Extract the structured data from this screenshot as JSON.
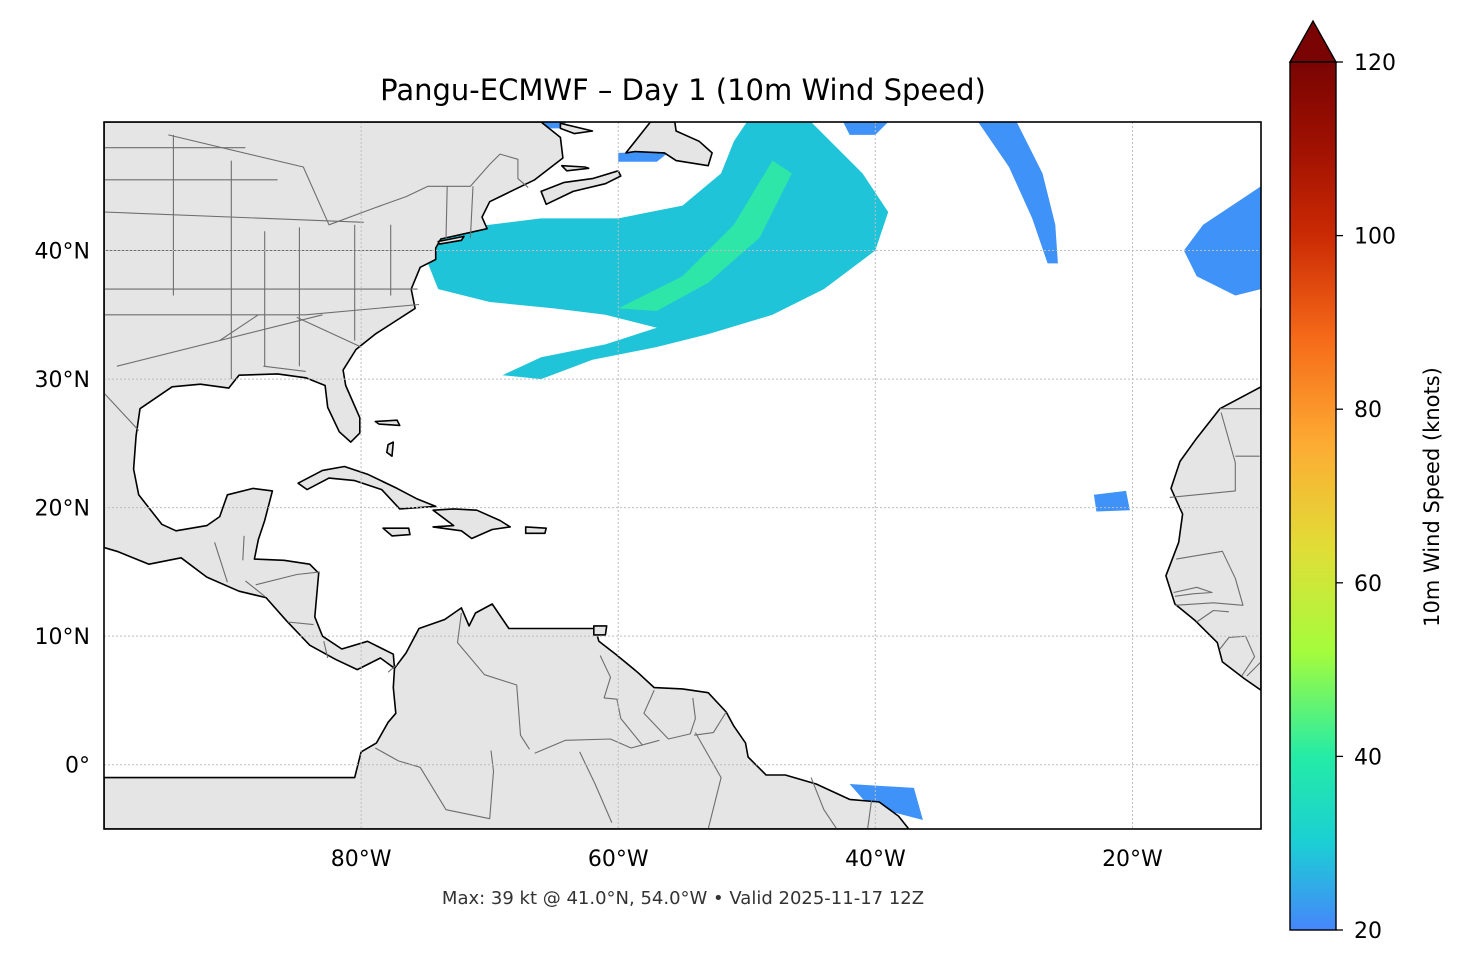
{
  "title": "Pangu-ECMWF – Day 1 (10m Wind Speed)",
  "footer": "Max: 39 kt @ 41.0°N, 54.0°W • Valid 2025-11-17 12Z",
  "map": {
    "extent": {
      "lon_min": -100,
      "lon_max": -10,
      "lat_min": -5,
      "lat_max": 50
    },
    "lon_ticks": [
      {
        "value": -80,
        "label": "80°W"
      },
      {
        "value": -60,
        "label": "60°W"
      },
      {
        "value": -40,
        "label": "40°W"
      },
      {
        "value": -20,
        "label": "20°W"
      }
    ],
    "lat_ticks": [
      {
        "value": 40,
        "label": "40°N"
      },
      {
        "value": 30,
        "label": "30°N"
      },
      {
        "value": 20,
        "label": "20°N"
      },
      {
        "value": 10,
        "label": "10°N"
      },
      {
        "value": 0,
        "label": "0°"
      }
    ],
    "colors": {
      "land": "#e5e5e5",
      "coast": "#000000",
      "borders": "#6e6e6e",
      "grid": "#bdbdbd"
    },
    "max_wind": {
      "value_kt": 39,
      "lat": 41.0,
      "lon": -54.0
    },
    "wind_regions": [
      {
        "name": "us-east-coast-jet",
        "color": "#20c4d8",
        "polygon": [
          [
            -74,
            41.5
          ],
          [
            -70,
            42
          ],
          [
            -66,
            42.5
          ],
          [
            -60,
            42.5
          ],
          [
            -55,
            43.5
          ],
          [
            -52,
            46
          ],
          [
            -51,
            48.5
          ],
          [
            -50,
            50
          ],
          [
            -45,
            50
          ],
          [
            -41,
            46
          ],
          [
            -39,
            43
          ],
          [
            -40,
            40
          ],
          [
            -44,
            37
          ],
          [
            -48,
            35
          ],
          [
            -53,
            33.5
          ],
          [
            -57,
            32.5
          ],
          [
            -62,
            31.5
          ],
          [
            -66,
            30
          ],
          [
            -69,
            30.3
          ],
          [
            -66,
            31.7
          ],
          [
            -61,
            32.7
          ],
          [
            -57,
            34
          ],
          [
            -61,
            35
          ],
          [
            -65,
            35.5
          ],
          [
            -70,
            36
          ],
          [
            -74,
            37
          ],
          [
            -75,
            39.5
          ]
        ]
      },
      {
        "name": "jet-core",
        "color": "#2ee6a8",
        "polygon": [
          [
            -60,
            35.5
          ],
          [
            -55,
            38
          ],
          [
            -51,
            42
          ],
          [
            -48,
            47
          ],
          [
            -46.5,
            46
          ],
          [
            -49,
            41
          ],
          [
            -53,
            37.5
          ],
          [
            -57,
            35.3
          ]
        ]
      },
      {
        "name": "canada-maritimes-patch",
        "color": "#3f92f8",
        "polygon": [
          [
            -60,
            47.6
          ],
          [
            -56,
            47.7
          ],
          [
            -57,
            46.9
          ],
          [
            -60,
            46.9
          ]
        ]
      },
      {
        "name": "labrador-patch",
        "color": "#3f92f8",
        "polygon": [
          [
            -68,
            50
          ],
          [
            -64,
            50
          ],
          [
            -64.6,
            49.5
          ],
          [
            -67.6,
            49.5
          ]
        ]
      },
      {
        "name": "north-patch",
        "color": "#3f92f8",
        "polygon": [
          [
            -42.5,
            50
          ],
          [
            -39,
            50
          ],
          [
            -40,
            49
          ],
          [
            -42,
            49
          ]
        ]
      },
      {
        "name": "mid-atlantic-streak",
        "color": "#3f92f8",
        "polygon": [
          [
            -32,
            50
          ],
          [
            -29,
            50
          ],
          [
            -27,
            46
          ],
          [
            -26,
            42
          ],
          [
            -25.8,
            39
          ],
          [
            -26.6,
            39
          ],
          [
            -27.8,
            42.5
          ],
          [
            -29.6,
            46.5
          ]
        ]
      },
      {
        "name": "iberia-patch",
        "color": "#3f92f8",
        "polygon": [
          [
            -14.5,
            42
          ],
          [
            -11.5,
            44
          ],
          [
            -10,
            45
          ],
          [
            -10,
            37
          ],
          [
            -12,
            36.5
          ],
          [
            -15,
            38
          ],
          [
            -16,
            40
          ]
        ]
      },
      {
        "name": "cape-verde-patch",
        "color": "#3f92f8",
        "polygon": [
          [
            -23,
            21
          ],
          [
            -20.5,
            21.3
          ],
          [
            -20.2,
            19.8
          ],
          [
            -22.8,
            19.7
          ]
        ]
      },
      {
        "name": "equatorial-patch",
        "color": "#3f92f8",
        "polygon": [
          [
            -42,
            -1.5
          ],
          [
            -37,
            -1.8
          ],
          [
            -36.3,
            -4.3
          ],
          [
            -40.5,
            -3.2
          ]
        ]
      },
      {
        "name": "great-lakes-patch",
        "color": "#3f92f8",
        "polygon": [
          [
            -79.5,
            43.9
          ],
          [
            -76.5,
            44.2
          ],
          [
            -76.6,
            43.3
          ],
          [
            -79.3,
            43.3
          ]
        ]
      }
    ]
  },
  "colorbar": {
    "label": "10m Wind Speed (knots)",
    "min": 20,
    "max": 120,
    "extend": "max",
    "extend_color": "#7a0403",
    "ticks": [
      {
        "value": 20,
        "label": "20"
      },
      {
        "value": 40,
        "label": "40"
      },
      {
        "value": 60,
        "label": "60"
      },
      {
        "value": 80,
        "label": "80"
      },
      {
        "value": 100,
        "label": "100"
      },
      {
        "value": 120,
        "label": "120"
      }
    ],
    "stops": [
      {
        "value": 20,
        "color": "#4686fb"
      },
      {
        "value": 30,
        "color": "#1bcfd4"
      },
      {
        "value": 40,
        "color": "#24eca6"
      },
      {
        "value": 52,
        "color": "#a4fc3c"
      },
      {
        "value": 64,
        "color": "#e1dd37"
      },
      {
        "value": 76,
        "color": "#fdab33"
      },
      {
        "value": 88,
        "color": "#f66b19"
      },
      {
        "value": 100,
        "color": "#cb2a04"
      },
      {
        "value": 110,
        "color": "#a01101"
      },
      {
        "value": 120,
        "color": "#7a0403"
      }
    ]
  }
}
